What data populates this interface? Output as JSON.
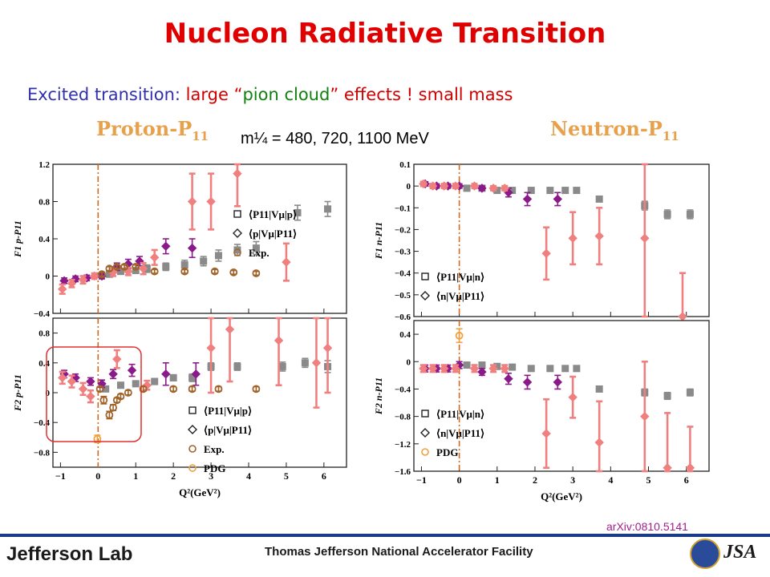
{
  "slide": {
    "title": "Nucleon Radiative Transition",
    "subtitle_part1": "Excited transition: ",
    "subtitle_part2": "large “",
    "subtitle_part3": "pion cloud",
    "subtitle_part4": "” effects ! small mass",
    "proton_heading": "Proton-P",
    "proton_sub": "11",
    "neutron_heading": "Neutron-P",
    "neutron_sub": "11",
    "mass_note": "m¼ = 480, 720, 1100 MeV",
    "reference": "arXiv:0810.5141",
    "footer_lab": "Jefferson Lab",
    "footer_facility": "Thomas Jefferson National Accelerator Facility",
    "footer_jsa": "JSA"
  },
  "colors": {
    "lattice_gray": "#8a8a8a",
    "lattice_purple": "#8a1a8a",
    "lattice_pink": "#f08080",
    "exp_brown": "#a0642a",
    "pdg_orange": "#f0a040",
    "dashline": "#d2691e",
    "highlight_box": "#e03030"
  },
  "chart_data": [
    {
      "id": "proton-F1",
      "type": "scatter",
      "xlabel": "",
      "ylabel": "F1 p-P11",
      "xlim": [
        -1.2,
        6.6
      ],
      "ylim": [
        -0.4,
        1.2
      ],
      "yticks": [
        -0.4,
        0,
        0.4,
        0.8,
        1.2
      ],
      "legend": [
        "⟨P11|Vμ|p⟩",
        "⟨p|Vμ|P11⟩",
        "Exp."
      ],
      "series": [
        {
          "name": "⟨P11|Vμ|p⟩",
          "color": "gray",
          "marker": "square",
          "points": [
            [
              0.3,
              0.02,
              0.03
            ],
            [
              0.6,
              0.05,
              0.03
            ],
            [
              1.0,
              0.06,
              0.03
            ],
            [
              1.3,
              0.08,
              0.04
            ],
            [
              1.8,
              0.1,
              0.04
            ],
            [
              2.3,
              0.12,
              0.05
            ],
            [
              2.8,
              0.16,
              0.05
            ],
            [
              3.2,
              0.22,
              0.06
            ],
            [
              3.7,
              0.28,
              0.06
            ],
            [
              4.2,
              0.3,
              0.07
            ],
            [
              5.3,
              0.68,
              0.08
            ],
            [
              6.1,
              0.72,
              0.08
            ]
          ]
        },
        {
          "name": "⟨p|Vμ|P11⟩",
          "color": "purple",
          "marker": "diamond",
          "points": [
            [
              -0.9,
              -0.05,
              0.03
            ],
            [
              -0.6,
              -0.03,
              0.03
            ],
            [
              -0.3,
              -0.02,
              0.03
            ],
            [
              0.1,
              0.0,
              0.03
            ],
            [
              0.5,
              0.1,
              0.04
            ],
            [
              0.8,
              0.13,
              0.05
            ],
            [
              1.1,
              0.16,
              0.05
            ],
            [
              1.8,
              0.32,
              0.08
            ],
            [
              2.5,
              0.3,
              0.1
            ]
          ]
        },
        {
          "name": "pink",
          "color": "pink",
          "marker": "diamond",
          "points": [
            [
              -0.95,
              -0.14,
              0.05
            ],
            [
              -0.7,
              -0.08,
              0.04
            ],
            [
              -0.4,
              -0.04,
              0.04
            ],
            [
              -0.1,
              0.0,
              0.03
            ],
            [
              0.4,
              0.04,
              0.04
            ],
            [
              0.8,
              0.05,
              0.04
            ],
            [
              1.2,
              0.08,
              0.06
            ],
            [
              1.5,
              0.2,
              0.08
            ],
            [
              2.5,
              0.8,
              0.3
            ],
            [
              3.0,
              0.8,
              0.3
            ],
            [
              3.7,
              1.1,
              0.35
            ],
            [
              5.0,
              0.15,
              0.2
            ]
          ]
        },
        {
          "name": "Exp.",
          "color": "brown",
          "marker": "circle",
          "points": [
            [
              0.1,
              0.02,
              0.02
            ],
            [
              0.3,
              0.08,
              0.02
            ],
            [
              0.5,
              0.1,
              0.02
            ],
            [
              0.7,
              0.1,
              0.02
            ],
            [
              1.0,
              0.1,
              0.02
            ],
            [
              1.5,
              0.05,
              0.02
            ],
            [
              2.3,
              0.05,
              0.02
            ],
            [
              3.1,
              0.05,
              0.02
            ],
            [
              3.6,
              0.04,
              0.02
            ],
            [
              4.2,
              0.03,
              0.02
            ]
          ]
        }
      ]
    },
    {
      "id": "proton-F2",
      "type": "scatter",
      "xlabel": "Q²(GeV²)",
      "ylabel": "F2 p-P11",
      "xlim": [
        -1.2,
        6.6
      ],
      "ylim": [
        -1.0,
        1.0
      ],
      "yticks": [
        -0.8,
        -0.4,
        0,
        0.4,
        0.8
      ],
      "xticks": [
        -1,
        0,
        1,
        2,
        3,
        4,
        5,
        6
      ],
      "legend": [
        "⟨P11|Vμ|p⟩",
        "⟨p|Vμ|P11⟩",
        "Exp.",
        "PDG"
      ],
      "series": [
        {
          "name": "⟨P11|Vμ|p⟩",
          "color": "gray",
          "marker": "square",
          "points": [
            [
              0.2,
              0.05,
              0.03
            ],
            [
              0.6,
              0.1,
              0.03
            ],
            [
              1.0,
              0.12,
              0.03
            ],
            [
              1.5,
              0.15,
              0.04
            ],
            [
              2.0,
              0.2,
              0.04
            ],
            [
              2.5,
              0.2,
              0.05
            ],
            [
              3.0,
              0.35,
              0.05
            ],
            [
              3.7,
              0.35,
              0.05
            ],
            [
              4.9,
              0.35,
              0.06
            ],
            [
              5.5,
              0.4,
              0.06
            ],
            [
              6.1,
              0.35,
              0.08
            ]
          ]
        },
        {
          "name": "⟨p|Vμ|P11⟩",
          "color": "purple",
          "marker": "diamond",
          "points": [
            [
              -0.9,
              0.25,
              0.05
            ],
            [
              -0.6,
              0.2,
              0.05
            ],
            [
              -0.2,
              0.15,
              0.05
            ],
            [
              0.1,
              0.12,
              0.05
            ],
            [
              0.4,
              0.25,
              0.06
            ],
            [
              0.9,
              0.3,
              0.08
            ],
            [
              1.8,
              0.25,
              0.15
            ],
            [
              2.6,
              0.25,
              0.15
            ]
          ]
        },
        {
          "name": "pink",
          "color": "pink",
          "marker": "diamond",
          "points": [
            [
              -0.95,
              0.2,
              0.08
            ],
            [
              -0.7,
              0.15,
              0.08
            ],
            [
              -0.4,
              0.05,
              0.08
            ],
            [
              -0.2,
              -0.05,
              0.08
            ],
            [
              0.5,
              0.45,
              0.12
            ],
            [
              1.3,
              0.1,
              0.06
            ],
            [
              3.0,
              0.6,
              0.6
            ],
            [
              3.5,
              0.85,
              0.7
            ],
            [
              4.8,
              0.7,
              0.6
            ],
            [
              5.8,
              0.4,
              0.6
            ],
            [
              6.1,
              0.6,
              0.6
            ]
          ]
        },
        {
          "name": "Exp.",
          "color": "brown",
          "marker": "circle",
          "points": [
            [
              0.05,
              0.05,
              0.03
            ],
            [
              0.15,
              -0.1,
              0.05
            ],
            [
              0.3,
              -0.3,
              0.05
            ],
            [
              0.4,
              -0.2,
              0.04
            ],
            [
              0.5,
              -0.1,
              0.03
            ],
            [
              0.6,
              -0.05,
              0.03
            ],
            [
              0.8,
              0.0,
              0.03
            ],
            [
              1.2,
              0.05,
              0.03
            ],
            [
              2.0,
              0.05,
              0.03
            ],
            [
              2.5,
              0.05,
              0.03
            ],
            [
              3.2,
              0.05,
              0.03
            ],
            [
              4.2,
              0.05,
              0.03
            ]
          ]
        },
        {
          "name": "PDG",
          "color": "orange",
          "marker": "circle",
          "points": [
            [
              -0.02,
              -0.62,
              0.05
            ]
          ]
        }
      ]
    },
    {
      "id": "neutron-F1",
      "type": "scatter",
      "xlabel": "",
      "ylabel": "F1 n-P11",
      "xlim": [
        -1.2,
        6.6
      ],
      "ylim": [
        -0.6,
        0.1
      ],
      "yticks": [
        -0.6,
        -0.5,
        -0.4,
        -0.3,
        -0.2,
        -0.1,
        0,
        0.1
      ],
      "legend": [
        "⟨P11|Vμ|n⟩",
        "⟨n|Vμ|P11⟩"
      ],
      "series": [
        {
          "name": "⟨P11|Vμ|n⟩",
          "color": "gray",
          "marker": "square",
          "points": [
            [
              0.2,
              -0.01,
              0.01
            ],
            [
              0.6,
              -0.01,
              0.01
            ],
            [
              1.0,
              -0.02,
              0.01
            ],
            [
              1.4,
              -0.02,
              0.01
            ],
            [
              1.9,
              -0.02,
              0.01
            ],
            [
              2.4,
              -0.02,
              0.01
            ],
            [
              2.8,
              -0.02,
              0.01
            ],
            [
              3.1,
              -0.02,
              0.01
            ],
            [
              3.7,
              -0.06,
              0.01
            ],
            [
              4.9,
              -0.09,
              0.02
            ],
            [
              5.5,
              -0.13,
              0.02
            ],
            [
              6.1,
              -0.13,
              0.02
            ]
          ]
        },
        {
          "name": "⟨n|Vμ|P11⟩",
          "color": "purple",
          "marker": "diamond",
          "points": [
            [
              -0.9,
              0.01,
              0.01
            ],
            [
              -0.6,
              0.0,
              0.01
            ],
            [
              -0.3,
              0.0,
              0.01
            ],
            [
              0.0,
              0.0,
              0.01
            ],
            [
              0.6,
              -0.01,
              0.01
            ],
            [
              1.3,
              -0.03,
              0.02
            ],
            [
              1.8,
              -0.06,
              0.03
            ],
            [
              2.6,
              -0.06,
              0.03
            ]
          ]
        },
        {
          "name": "pink",
          "color": "pink",
          "marker": "diamond",
          "points": [
            [
              -0.95,
              0.01,
              0.01
            ],
            [
              -0.7,
              0.0,
              0.01
            ],
            [
              -0.4,
              0.0,
              0.01
            ],
            [
              -0.1,
              0.0,
              0.01
            ],
            [
              0.4,
              0.0,
              0.01
            ],
            [
              0.9,
              -0.01,
              0.01
            ],
            [
              1.2,
              -0.01,
              0.01
            ],
            [
              2.3,
              -0.31,
              0.12
            ],
            [
              3.0,
              -0.24,
              0.12
            ],
            [
              3.7,
              -0.23,
              0.13
            ],
            [
              4.9,
              -0.24,
              0.38
            ],
            [
              5.9,
              -0.6,
              0.2
            ]
          ]
        }
      ]
    },
    {
      "id": "neutron-F2",
      "type": "scatter",
      "xlabel": "Q²(GeV²)",
      "ylabel": "F2 n-P11",
      "xlim": [
        -1.2,
        6.6
      ],
      "ylim": [
        -1.6,
        0.6
      ],
      "yticks": [
        -1.6,
        -1.2,
        -0.8,
        -0.4,
        0,
        0.4
      ],
      "xticks": [
        -1,
        0,
        1,
        2,
        3,
        4,
        5,
        6
      ],
      "legend": [
        "⟨P11|Vμ|n⟩",
        "⟨n|Vμ|P11⟩",
        "PDG"
      ],
      "series": [
        {
          "name": "⟨P11|Vμ|n⟩",
          "color": "gray",
          "marker": "square",
          "points": [
            [
              0.2,
              -0.05,
              0.02
            ],
            [
              0.6,
              -0.05,
              0.02
            ],
            [
              1.0,
              -0.07,
              0.02
            ],
            [
              1.4,
              -0.08,
              0.02
            ],
            [
              1.9,
              -0.1,
              0.02
            ],
            [
              2.4,
              -0.1,
              0.03
            ],
            [
              2.8,
              -0.1,
              0.03
            ],
            [
              3.1,
              -0.1,
              0.03
            ],
            [
              3.7,
              -0.4,
              0.04
            ],
            [
              4.9,
              -0.45,
              0.05
            ],
            [
              5.5,
              -0.5,
              0.05
            ],
            [
              6.1,
              -0.45,
              0.05
            ]
          ]
        },
        {
          "name": "⟨n|Vμ|P11⟩",
          "color": "purple",
          "marker": "diamond",
          "points": [
            [
              -0.9,
              -0.1,
              0.05
            ],
            [
              -0.6,
              -0.1,
              0.05
            ],
            [
              -0.3,
              -0.1,
              0.05
            ],
            [
              0.0,
              -0.05,
              0.05
            ],
            [
              0.6,
              -0.15,
              0.05
            ],
            [
              1.3,
              -0.25,
              0.08
            ],
            [
              1.8,
              -0.3,
              0.1
            ],
            [
              2.6,
              -0.3,
              0.1
            ]
          ]
        },
        {
          "name": "pink",
          "color": "pink",
          "marker": "diamond",
          "points": [
            [
              -0.95,
              -0.1,
              0.05
            ],
            [
              -0.7,
              -0.1,
              0.05
            ],
            [
              -0.4,
              -0.1,
              0.05
            ],
            [
              -0.1,
              -0.1,
              0.05
            ],
            [
              0.4,
              -0.1,
              0.05
            ],
            [
              0.9,
              -0.1,
              0.05
            ],
            [
              1.2,
              -0.1,
              0.05
            ],
            [
              2.3,
              -1.05,
              0.5
            ],
            [
              3.0,
              -0.52,
              0.3
            ],
            [
              3.7,
              -1.18,
              0.6
            ],
            [
              4.9,
              -0.8,
              0.8
            ],
            [
              5.5,
              -1.55,
              0.8
            ],
            [
              6.1,
              -1.55,
              0.6
            ]
          ]
        },
        {
          "name": "PDG",
          "color": "orange",
          "marker": "circle",
          "points": [
            [
              0.0,
              0.38,
              0.1
            ]
          ]
        }
      ]
    }
  ]
}
